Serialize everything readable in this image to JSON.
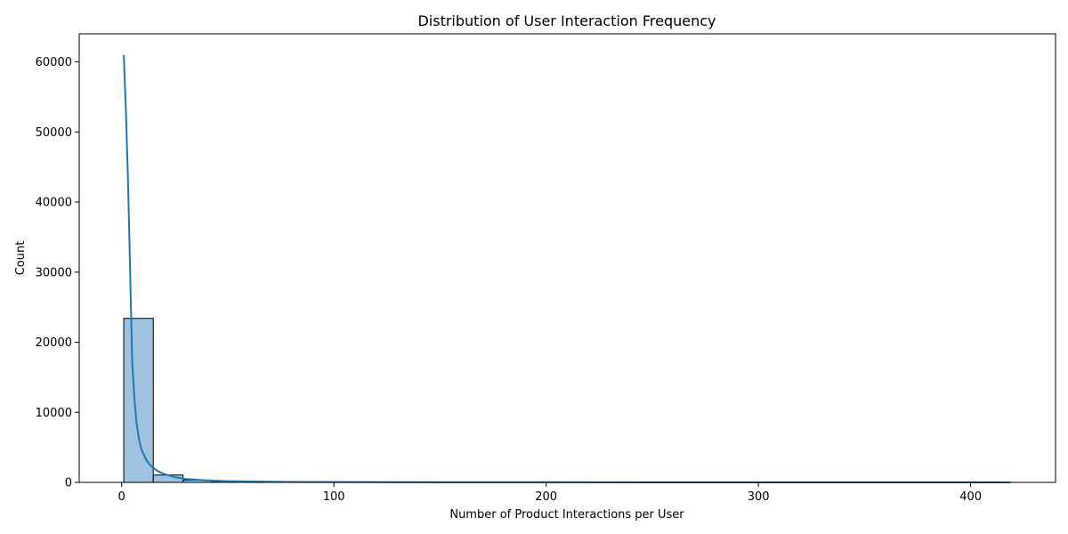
{
  "chart_data": {
    "type": "bar",
    "title": "Distribution of User Interaction Frequency",
    "xlabel": "Number of Product Interactions per User",
    "ylabel": "Count",
    "xlim": [
      -20,
      440
    ],
    "ylim": [
      0,
      64000
    ],
    "x_ticks": [
      0,
      100,
      200,
      300,
      400
    ],
    "y_ticks": [
      0,
      10000,
      20000,
      30000,
      40000,
      50000,
      60000
    ],
    "grid": false,
    "legend": "none",
    "histogram": {
      "bin_edges": [
        1,
        14.9,
        28.9,
        42.8,
        56.7,
        70.6,
        84.6,
        98.5,
        112.4,
        126.3,
        140.3,
        154.2,
        168.1,
        182.0,
        196.0,
        209.9,
        223.8,
        237.7,
        251.7,
        265.6,
        279.5,
        293.4,
        307.4,
        321.3,
        335.2,
        349.1,
        363.1,
        377.0,
        390.9,
        404.8,
        418.8
      ],
      "counts": [
        23400,
        1050,
        330,
        140,
        80,
        50,
        30,
        25,
        20,
        15,
        12,
        10,
        8,
        7,
        6,
        5,
        5,
        4,
        4,
        3,
        3,
        3,
        2,
        2,
        2,
        2,
        1,
        1,
        1,
        1
      ]
    },
    "kde": {
      "x": [
        1,
        2,
        3,
        4,
        5,
        6,
        7,
        8,
        9,
        10,
        12,
        14,
        17,
        20,
        25,
        30,
        40,
        50,
        60,
        80,
        100,
        150,
        200,
        250,
        300,
        350,
        400,
        418.8
      ],
      "y": [
        61000,
        53000,
        43000,
        30000,
        17000,
        12000,
        8500,
        6500,
        5000,
        4200,
        3000,
        2300,
        1600,
        1200,
        750,
        500,
        280,
        170,
        120,
        70,
        45,
        22,
        12,
        7,
        5,
        3,
        2,
        1
      ]
    },
    "colors": {
      "bar_fill": "#9dc3e1",
      "bar_edge": "#000000",
      "kde_line": "#1f77b4"
    }
  }
}
